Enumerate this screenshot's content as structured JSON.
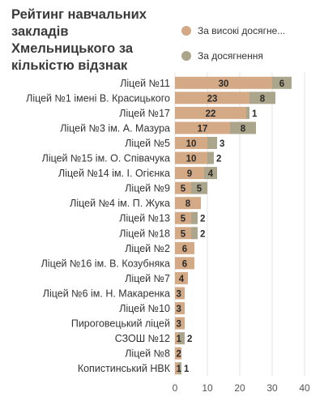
{
  "chart_data": {
    "type": "bar",
    "orientation": "horizontal",
    "stacked": true,
    "title": "Рейтинг навчальних закладів Хмельницького за кількістю відзнак",
    "xlabel": "",
    "ylabel": "",
    "xlim": [
      0,
      40
    ],
    "xticks": [
      "0",
      "10",
      "20",
      "30",
      "40"
    ],
    "grid": true,
    "legend_position": "top-right",
    "categories": [
      "Ліцей №11",
      "Ліцей №1 імені В. Красицького",
      "Ліцей №17",
      "Ліцей №3 ім. А. Мазура",
      "Ліцей №5",
      "Ліцей №15 ім. О. Співачука",
      "Ліцей №14 ім. І. Огієнка",
      "Ліцей №9",
      "Ліцей №4 ім. П. Жука",
      "Ліцей №13",
      "Ліцей №18",
      "Ліцей №2",
      "Ліцей №16 ім. В. Козубняка",
      "Ліцей №7",
      "Ліцей №6 ім. Н. Макаренка",
      "Ліцей №10",
      "Пироговецький ліцей",
      "СЗОШ №12",
      "Ліцей №8",
      "Копистинський НВК"
    ],
    "series": [
      {
        "name": "За високі досягне...",
        "color": "#d4aa86",
        "values": [
          30,
          23,
          22,
          17,
          10,
          10,
          9,
          5,
          8,
          5,
          5,
          6,
          6,
          4,
          3,
          3,
          3,
          1,
          2,
          1
        ]
      },
      {
        "name": "За досягнення",
        "color": "#aaa58b",
        "values": [
          6,
          8,
          1,
          8,
          3,
          2,
          4,
          5,
          0,
          2,
          2,
          0,
          0,
          0,
          0,
          0,
          0,
          2,
          0,
          1
        ]
      }
    ]
  }
}
